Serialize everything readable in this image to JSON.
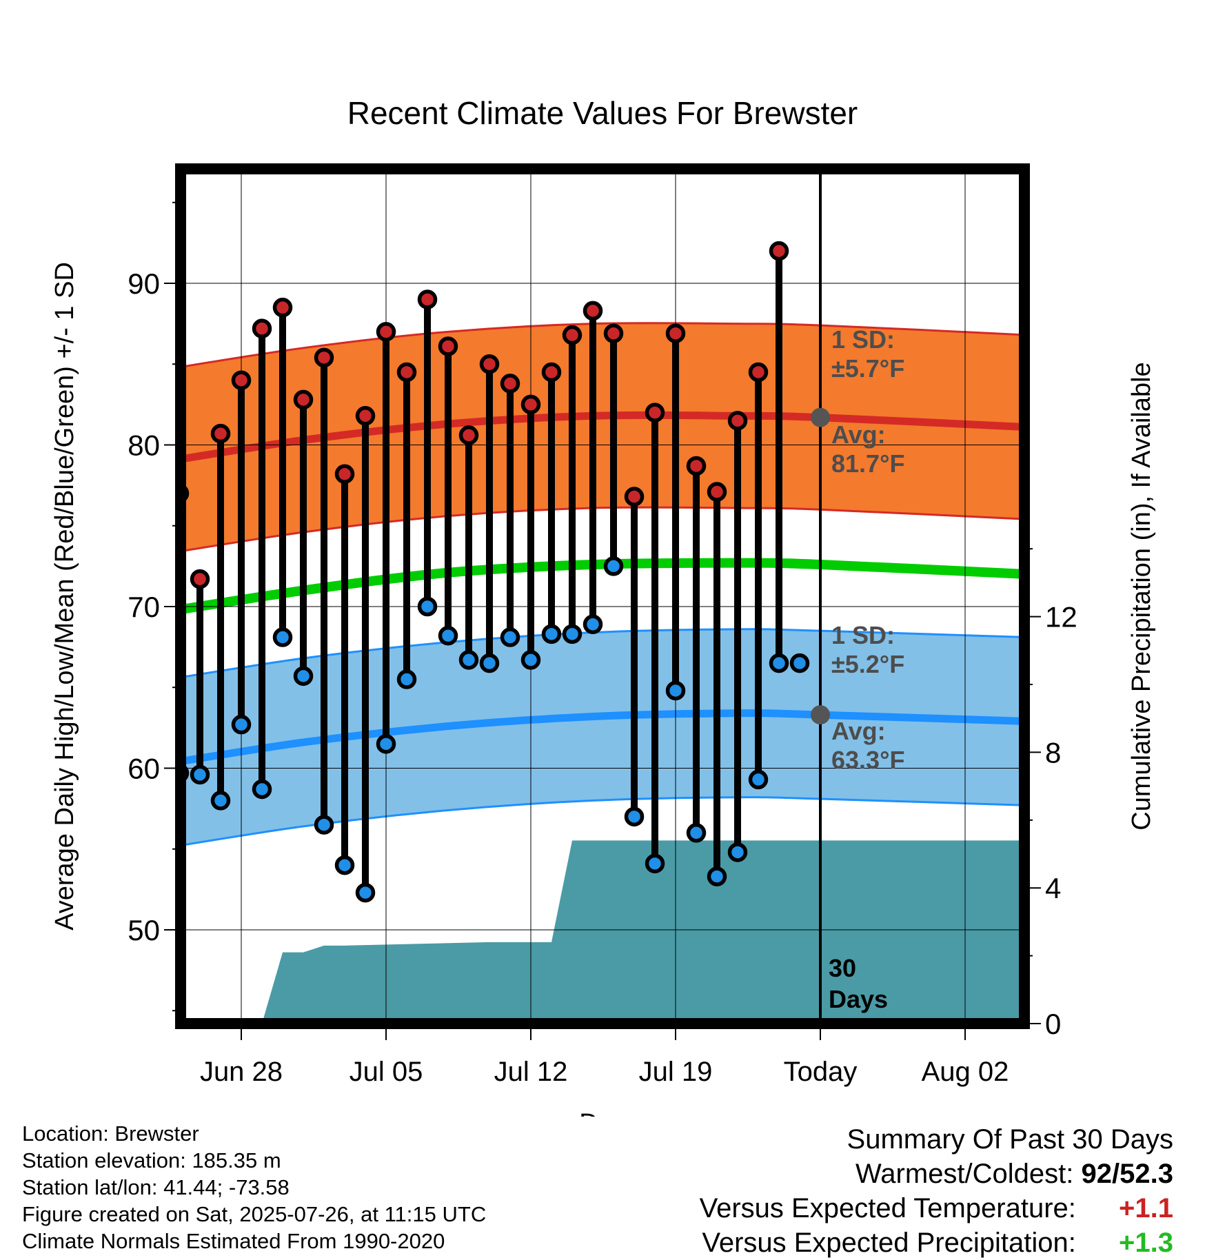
{
  "chart_data": {
    "type": "line",
    "title": "Recent Climate Values For Brewster",
    "xlabel": "Day",
    "ylabel_left": "Average Daily High/Low/Mean (Red/Blue/Green) +/- 1 SD",
    "ylabel_right": "Cumulative Precipitation (in), If Available",
    "x_tick_labels": [
      "Jun 28",
      "Jul 05",
      "Jul 12",
      "Jul 19",
      "Today",
      "Aug 02"
    ],
    "y_ticks_left": [
      50,
      60,
      70,
      80,
      90
    ],
    "y_ticks_right": [
      0,
      4,
      8,
      12
    ],
    "ylim_left": [
      45,
      97
    ],
    "ylim_right": [
      0,
      24.7
    ],
    "days": [
      "2025-06-25",
      "2025-06-26",
      "2025-06-27",
      "2025-06-28",
      "2025-06-29",
      "2025-06-30",
      "2025-07-01",
      "2025-07-02",
      "2025-07-03",
      "2025-07-04",
      "2025-07-05",
      "2025-07-06",
      "2025-07-07",
      "2025-07-08",
      "2025-07-09",
      "2025-07-10",
      "2025-07-11",
      "2025-07-12",
      "2025-07-13",
      "2025-07-14",
      "2025-07-15",
      "2025-07-16",
      "2025-07-17",
      "2025-07-18",
      "2025-07-19",
      "2025-07-20",
      "2025-07-21",
      "2025-07-22",
      "2025-07-23",
      "2025-07-24",
      "2025-07-25"
    ],
    "daily_high": [
      77,
      71.7,
      80.7,
      84,
      87.2,
      88.5,
      82.8,
      85.4,
      78.2,
      81.8,
      87,
      84.5,
      89,
      86.1,
      80.6,
      85,
      83.8,
      82.5,
      84.5,
      86.8,
      88.3,
      86.9,
      76.8,
      82,
      86.9,
      78.7,
      77.1,
      81.5,
      84.5,
      92,
      66.5
    ],
    "daily_low": [
      59.7,
      59.6,
      58,
      62.7,
      58.7,
      68.1,
      65.7,
      56.5,
      54,
      52.3,
      61.5,
      65.5,
      70,
      68.2,
      66.7,
      66.5,
      68.1,
      66.7,
      68.3,
      68.3,
      68.9,
      72.5,
      57,
      54.1,
      64.8,
      56,
      53.3,
      54.8,
      59.3,
      66.5,
      null
    ],
    "normal_high": {
      "dates": [
        "2025-06-24",
        "2025-07-01",
        "2025-07-08",
        "2025-07-15",
        "2025-07-22",
        "2025-07-26",
        "2025-08-05"
      ],
      "values": [
        78.9,
        80.3,
        81.3,
        81.8,
        81.8,
        81.7,
        81.1
      ]
    },
    "normal_low": {
      "dates": [
        "2025-06-24",
        "2025-07-01",
        "2025-07-08",
        "2025-07-15",
        "2025-07-22",
        "2025-07-26",
        "2025-08-05"
      ],
      "values": [
        60.2,
        61.6,
        62.6,
        63.2,
        63.4,
        63.3,
        62.9
      ]
    },
    "normal_mean": {
      "dates": [
        "2025-06-24",
        "2025-07-01",
        "2025-07-08",
        "2025-07-15",
        "2025-07-22",
        "2025-07-26",
        "2025-08-05"
      ],
      "values": [
        69.6,
        71,
        72.1,
        72.6,
        72.7,
        72.6,
        72
      ]
    },
    "sd_high": 5.7,
    "sd_low": 5.2,
    "precip_cumulative": {
      "dates": [
        "2025-06-29",
        "2025-06-30",
        "2025-07-01",
        "2025-07-02",
        "2025-07-03",
        "2025-07-10",
        "2025-07-13",
        "2025-07-14",
        "2025-08-05"
      ],
      "values": [
        0,
        2.1,
        2.1,
        2.3,
        2.3,
        2.4,
        2.4,
        5.4,
        5.4
      ]
    },
    "annotations": {
      "high_sd": "1 SD:",
      "high_sd_value": "±5.7°F",
      "high_avg": "Avg:",
      "high_avg_value": "81.7°F",
      "low_sd": "1 SD:",
      "low_sd_value": "±5.2°F",
      "low_avg": "Avg:",
      "low_avg_value": "63.3°F",
      "period_num": "30",
      "period_unit": "Days"
    },
    "colors": {
      "high_band": "#f47a2d",
      "high_line": "#d42a25",
      "high_dot": "#c9262a",
      "low_band": "#82c0e8",
      "low_line": "#1e90ff",
      "low_dot": "#1f8fe8",
      "mean_line": "#00cc00",
      "precip": "#4a9ba6",
      "annotation": "#4d4d4d",
      "avg_marker": "#555555"
    },
    "grid": true
  },
  "footer": {
    "location": "Location: Brewster",
    "elevation": "Station elevation: 185.35 m",
    "latlon": "Station lat/lon: 41.44; -73.58",
    "created": "Figure created on Sat, 2025-07-26, at 11:15 UTC",
    "normals": "Climate Normals Estimated From 1990-2020"
  },
  "summary": {
    "heading": "Summary Of Past 30 Days",
    "warm_cold_label": "Warmest/Coldest:",
    "warm_cold_value": "92/52.3",
    "temp_label": "Versus Expected Temperature:",
    "temp_value": "+1.1",
    "temp_color": "#cc2222",
    "precip_label": "Versus Expected Precipitation:",
    "precip_value": "+1.3",
    "precip_color": "#22bb22"
  }
}
